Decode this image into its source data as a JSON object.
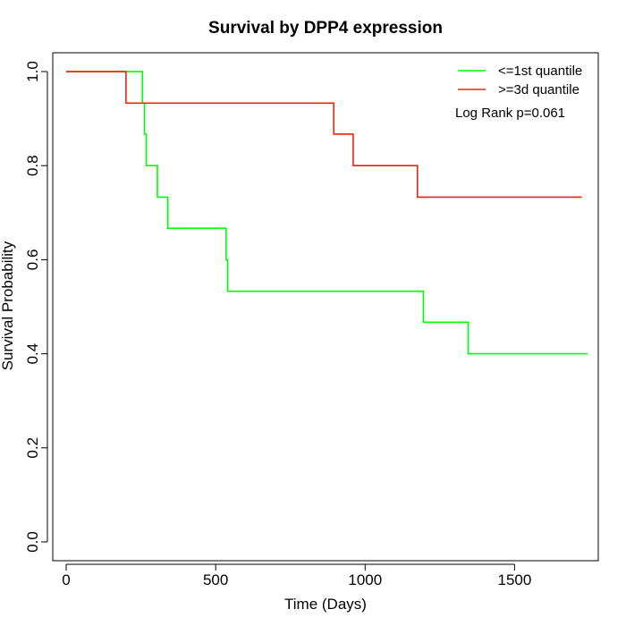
{
  "chart_data": {
    "type": "line",
    "step": true,
    "title": "Survival by DPP4 expression",
    "xlabel": "Time (Days)",
    "ylabel": "Survival Probability",
    "xlim": [
      -45,
      1780
    ],
    "ylim": [
      -0.04,
      1.04
    ],
    "xticks": [
      0,
      500,
      1000,
      1500
    ],
    "xtick_labels": [
      "0",
      "500",
      "1000",
      "1500"
    ],
    "yticks": [
      0.0,
      0.2,
      0.4,
      0.6,
      0.8,
      1.0
    ],
    "ytick_labels": [
      "0.0",
      "0.2",
      "0.4",
      "0.6",
      "0.8",
      "1.0"
    ],
    "grid": false,
    "legend_position": "top-right",
    "annotation": "Log Rank p=0.061",
    "series": [
      {
        "name": "<=1st quantile",
        "color": "#00ff00",
        "x": [
          0,
          255,
          262,
          268,
          305,
          340,
          535,
          540,
          1195,
          1345,
          1745
        ],
        "y": [
          1.0,
          0.933,
          0.867,
          0.8,
          0.733,
          0.667,
          0.6,
          0.533,
          0.467,
          0.4,
          0.4
        ]
      },
      {
        "name": ">=3d quantile",
        "color": "#e8260c",
        "x": [
          0,
          200,
          895,
          960,
          1175,
          1725
        ],
        "y": [
          1.0,
          0.933,
          0.867,
          0.8,
          0.733,
          0.733
        ]
      }
    ]
  }
}
